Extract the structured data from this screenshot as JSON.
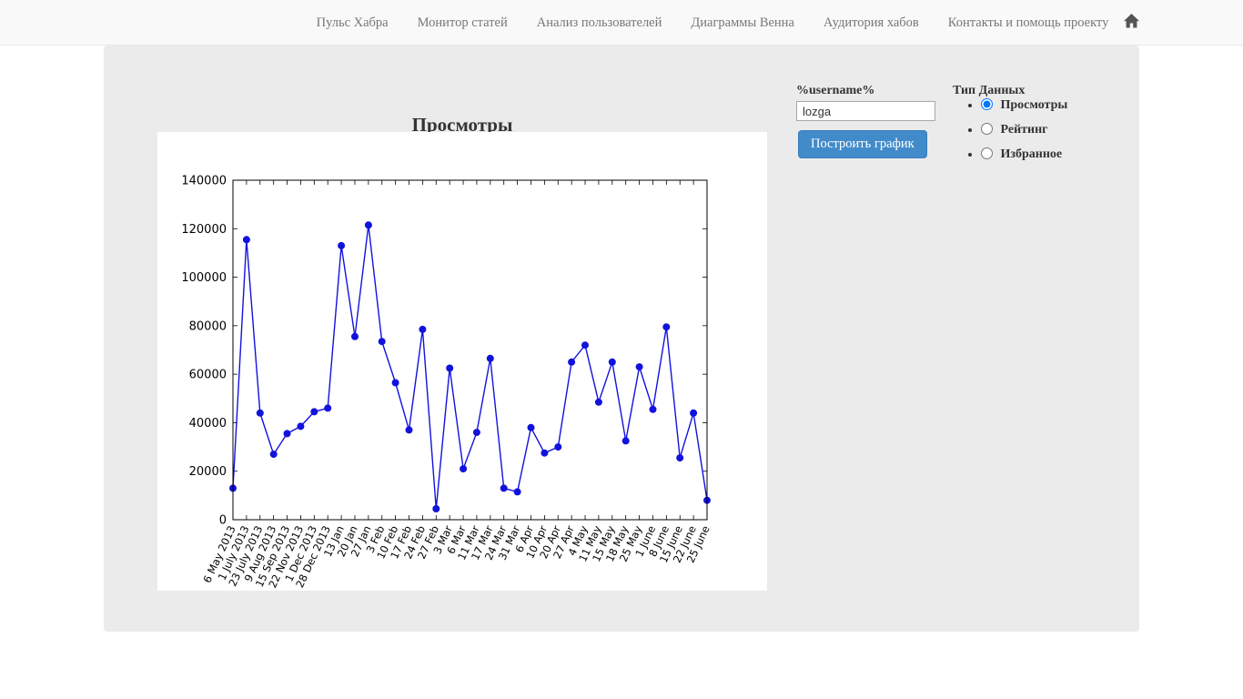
{
  "nav": {
    "items": [
      {
        "label": "Пульс Хабра"
      },
      {
        "label": "Монитор статей"
      },
      {
        "label": "Анализ пользователей"
      },
      {
        "label": "Диаграммы Венна"
      },
      {
        "label": "Аудитория хабов"
      },
      {
        "label": "Контакты и помощь проекту"
      }
    ]
  },
  "main": {
    "chart_title": "Просмотры",
    "username_label": "%username%",
    "username_value": "lozga",
    "build_button_label": "Построить график",
    "data_type": {
      "label": "Тип Данных",
      "options": [
        {
          "label": "Просмотры",
          "selected": true
        },
        {
          "label": "Рейтинг",
          "selected": false
        },
        {
          "label": "Избранное",
          "selected": false
        }
      ]
    }
  },
  "colors": {
    "button_blue": "#428bca",
    "panel_gray": "#ebebeb",
    "nav_text": "#777777",
    "line_blue": "#1212dd"
  },
  "chart_data": {
    "type": "line",
    "title": "Просмотры",
    "xlabel": "",
    "ylabel": "",
    "ylim": [
      0,
      140000
    ],
    "yticks": [
      0,
      20000,
      40000,
      60000,
      80000,
      100000,
      120000,
      140000
    ],
    "grid": false,
    "legend": "none",
    "marker": "circle",
    "line_color": "#1212dd",
    "categories": [
      "6 May 2013",
      "1 July 2013",
      "23 July 2013",
      "9 Aug 2013",
      "15 Sep 2013",
      "22 Nov 2013",
      "1 Dec 2013",
      "28 Dec 2013",
      "13 Jan",
      "20 Jan",
      "27 Jan",
      "3 Feb",
      "10 Feb",
      "17 Feb",
      "24 Feb",
      "27 Feb",
      "3 Mar",
      "6 Mar",
      "11 Mar",
      "17 Mar",
      "24 Mar",
      "31 Mar",
      "6 Apr",
      "10 Apr",
      "20 Apr",
      "27 Apr",
      "4 May",
      "11 May",
      "15 May",
      "18 May",
      "25 May",
      "1 June",
      "8 June",
      "15 June",
      "22 June",
      "25 June"
    ],
    "values": [
      13000,
      115500,
      44000,
      27000,
      35500,
      38500,
      44500,
      46000,
      113000,
      75500,
      121500,
      73500,
      56500,
      37000,
      78500,
      4500,
      62500,
      21000,
      36000,
      66500,
      13000,
      11500,
      38000,
      27500,
      30000,
      65000,
      72000,
      48500,
      65000,
      32500,
      63000,
      45500,
      79500,
      25500,
      44000,
      8000
    ]
  }
}
